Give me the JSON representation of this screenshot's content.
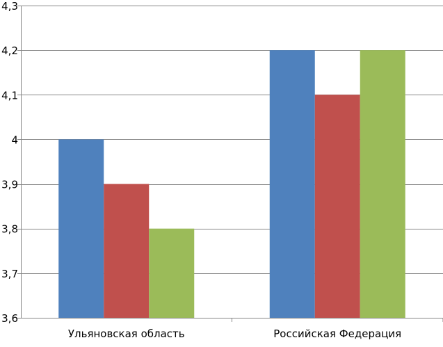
{
  "chart_data": {
    "type": "bar",
    "categories": [
      "Ульяновская область",
      "Российская Федерация"
    ],
    "series": [
      {
        "values": [
          4.0,
          4.2
        ],
        "color": "#4F81BD"
      },
      {
        "values": [
          3.9,
          4.1
        ],
        "color": "#C0504D"
      },
      {
        "values": [
          3.8,
          4.2
        ],
        "color": "#9BBB59"
      }
    ],
    "ylim": [
      3.6,
      4.3
    ],
    "yticks": [
      3.6,
      3.7,
      3.8,
      3.9,
      4.0,
      4.1,
      4.2,
      4.3
    ],
    "ytick_labels": [
      "3,6",
      "3,7",
      "3,8",
      "3,9",
      "4",
      "4,1",
      "4,2",
      "4,3"
    ],
    "grid": true,
    "title": "",
    "xlabel": "",
    "ylabel": ""
  }
}
